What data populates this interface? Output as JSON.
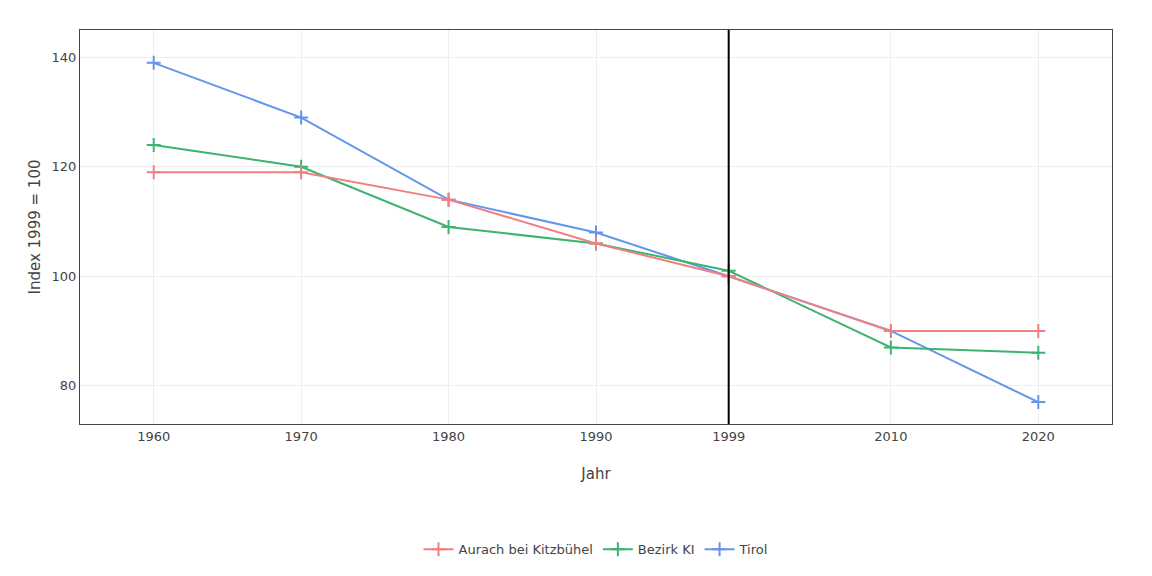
{
  "chart_data": {
    "type": "line",
    "x": [
      1960,
      1970,
      1980,
      1990,
      1999,
      2010,
      2020
    ],
    "series": [
      {
        "name": "Aurach bei Kitzbühel",
        "color": "#F08080",
        "values": [
          119,
          119,
          114,
          106,
          100,
          90,
          90
        ]
      },
      {
        "name": "Bezirk KI",
        "color": "#3CB371",
        "values": [
          124,
          120,
          109,
          106,
          101,
          87,
          86
        ]
      },
      {
        "name": "Tirol",
        "color": "#6495ED",
        "values": [
          139,
          129,
          114,
          108,
          100,
          90,
          77
        ]
      }
    ],
    "xlabel": "Jahr",
    "ylabel": "Index 1999 = 100",
    "xlim": [
      1955,
      2025
    ],
    "xticks": [
      1960,
      1970,
      1980,
      1990,
      1999,
      2010,
      2020
    ],
    "ylim": [
      73,
      145
    ],
    "yticks": [
      80,
      100,
      120,
      140
    ],
    "vline": 1999,
    "marker": "plus",
    "grid": true,
    "legend": "bottom"
  }
}
